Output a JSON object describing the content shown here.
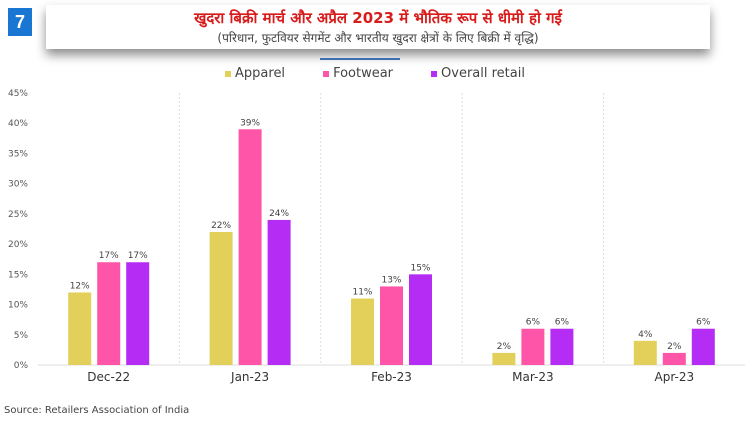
{
  "logo_text": "7",
  "chart_data": {
    "type": "bar",
    "title": "खुदरा बिक्री मार्च और अप्रैल 2023 में भौतिक रूप से धीमी हो गई",
    "subtitle": "(परिधान, फुटवियर सेगमेंट और भारतीय खुदरा क्षेत्रों के लिए बिक्री में वृद्धि)",
    "categories": [
      "Dec-22",
      "Jan-23",
      "Feb-23",
      "Mar-23",
      "Apr-23"
    ],
    "series": [
      {
        "name": "Apparel",
        "color": "#e2d05a",
        "values": [
          12,
          22,
          11,
          2,
          4
        ]
      },
      {
        "name": "Footwear",
        "color": "#ff55a8",
        "values": [
          17,
          39,
          13,
          6,
          2
        ]
      },
      {
        "name": "Overall retail",
        "color": "#b52cf5",
        "values": [
          17,
          24,
          15,
          6,
          6
        ]
      }
    ],
    "data_label_suffix": "%",
    "ylim": [
      0,
      45
    ],
    "yticks": [
      "0%",
      "5%",
      "10%",
      "15%",
      "20%",
      "25%",
      "30%",
      "35%",
      "40%",
      "45%"
    ],
    "grid": "vertical dotted separators",
    "legend": "top-center"
  },
  "source": "Source: Retailers Association of India"
}
